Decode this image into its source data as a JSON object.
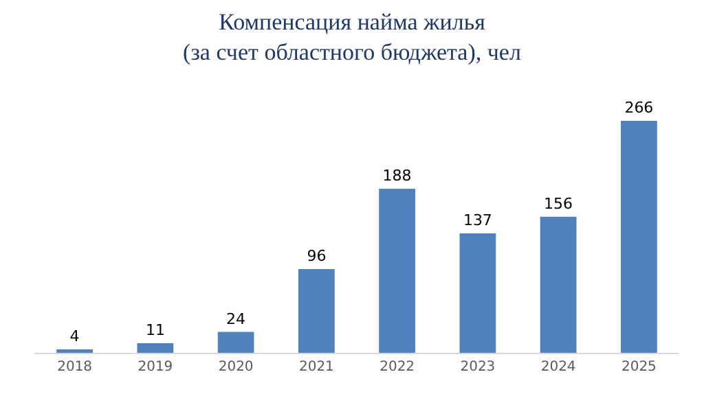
{
  "chart_data": {
    "type": "bar",
    "title": "Компенсация найма жилья\n(за счет областного бюджета), чел",
    "categories": [
      "2018",
      "2019",
      "2020",
      "2021",
      "2022",
      "2023",
      "2024",
      "2025"
    ],
    "values": [
      4,
      11,
      24,
      96,
      188,
      137,
      156,
      266
    ],
    "color": "#4f81bd",
    "data_labels": true
  }
}
